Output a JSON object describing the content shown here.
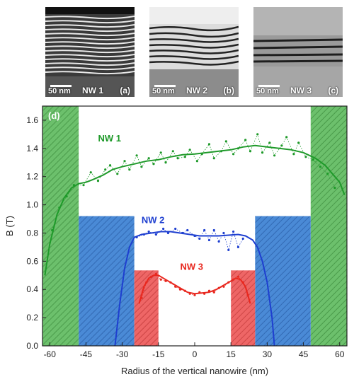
{
  "panels": [
    {
      "id": "a",
      "scale": "50 nm",
      "name": "NW 1",
      "label": "(a)"
    },
    {
      "id": "b",
      "scale": "50 nm",
      "name": "NW 2",
      "label": "(b)"
    },
    {
      "id": "c",
      "scale": "50 nm",
      "name": "NW 3",
      "label": "(c)"
    }
  ],
  "chart_data": {
    "type": "line",
    "panel_label": "(d)",
    "xlabel": "Radius of the vertical nanowire (nm)",
    "ylabel": "B (T)",
    "xlim": [
      -63,
      63
    ],
    "ylim": [
      0,
      1.7
    ],
    "xticks": [
      -60,
      -45,
      -30,
      -15,
      0,
      15,
      30,
      45,
      60
    ],
    "yticks": [
      0.0,
      0.2,
      0.4,
      0.6,
      0.8,
      1.0,
      1.2,
      1.4,
      1.6
    ],
    "ytick_labels": [
      "0.0",
      "0.2",
      "0.4",
      "0.6",
      "0.8",
      "1.0",
      "1.2",
      "1.4",
      "1.6"
    ],
    "grid": false,
    "shaded_regions": [
      {
        "color": "#5cb85c",
        "x": [
          -63,
          -48
        ],
        "y": [
          0,
          1.7
        ]
      },
      {
        "color": "#5cb85c",
        "x": [
          48,
          63
        ],
        "y": [
          0,
          1.7
        ]
      },
      {
        "color": "#3b7fd1",
        "x": [
          -48,
          -25
        ],
        "y": [
          0,
          0.92
        ]
      },
      {
        "color": "#3b7fd1",
        "x": [
          25,
          48
        ],
        "y": [
          0,
          0.92
        ]
      },
      {
        "color": "#e84a4a",
        "x": [
          -25,
          -15
        ],
        "y": [
          0,
          0.535
        ]
      },
      {
        "color": "#e84a4a",
        "x": [
          15,
          25
        ],
        "y": [
          0,
          0.535
        ]
      }
    ],
    "series": [
      {
        "name": "NW 1",
        "color": "#1f9a2a",
        "fit_x": [
          -62,
          -60,
          -57,
          -54,
          -51,
          -48,
          -45,
          -42,
          -38,
          -34,
          -30,
          -25,
          -20,
          -15,
          -10,
          -5,
          0,
          5,
          10,
          15,
          20,
          25,
          30,
          35,
          40,
          45,
          50,
          54,
          57,
          60,
          62
        ],
        "fit_y": [
          0.5,
          0.72,
          0.93,
          1.05,
          1.12,
          1.15,
          1.16,
          1.18,
          1.21,
          1.25,
          1.27,
          1.29,
          1.31,
          1.32,
          1.34,
          1.355,
          1.36,
          1.37,
          1.38,
          1.39,
          1.41,
          1.42,
          1.41,
          1.4,
          1.39,
          1.37,
          1.33,
          1.28,
          1.22,
          1.16,
          1.07
        ],
        "raw_x": [
          -59,
          -56,
          -53,
          -50,
          -46,
          -43,
          -40,
          -37,
          -35,
          -32,
          -29,
          -27,
          -24,
          -22,
          -19,
          -17,
          -14,
          -12,
          -9,
          -7,
          -4,
          -2,
          1,
          3,
          6,
          8,
          11,
          13,
          16,
          18,
          21,
          23,
          26,
          28,
          31,
          33,
          36,
          38,
          41,
          43,
          46,
          49,
          52,
          55,
          58
        ],
        "raw_y": [
          0.82,
          0.98,
          1.06,
          1.14,
          1.14,
          1.23,
          1.17,
          1.25,
          1.28,
          1.22,
          1.31,
          1.25,
          1.35,
          1.27,
          1.33,
          1.29,
          1.37,
          1.3,
          1.38,
          1.33,
          1.34,
          1.39,
          1.31,
          1.36,
          1.43,
          1.33,
          1.38,
          1.45,
          1.36,
          1.4,
          1.46,
          1.38,
          1.5,
          1.37,
          1.44,
          1.35,
          1.42,
          1.48,
          1.36,
          1.44,
          1.34,
          1.32,
          1.27,
          1.22,
          1.12
        ],
        "label": {
          "x": -40,
          "y": 1.45
        }
      },
      {
        "name": "NW 2",
        "color": "#1e3fd0",
        "fit_x": [
          -33,
          -31,
          -29,
          -27,
          -25,
          -22,
          -18,
          -14,
          -10,
          -6,
          -2,
          2,
          6,
          10,
          14,
          18,
          21,
          24,
          26,
          28,
          30,
          32,
          33
        ],
        "fit_y": [
          0.0,
          0.3,
          0.55,
          0.7,
          0.77,
          0.79,
          0.8,
          0.81,
          0.81,
          0.8,
          0.79,
          0.78,
          0.78,
          0.78,
          0.785,
          0.79,
          0.78,
          0.75,
          0.7,
          0.6,
          0.45,
          0.2,
          0.0
        ],
        "raw_x": [
          -24,
          -21,
          -19,
          -16,
          -13,
          -11,
          -8,
          -5,
          -3,
          0,
          2,
          4,
          6,
          8,
          10,
          12,
          14,
          16,
          18,
          20
        ],
        "raw_y": [
          0.77,
          0.79,
          0.81,
          0.79,
          0.83,
          0.8,
          0.83,
          0.8,
          0.82,
          0.78,
          0.76,
          0.82,
          0.75,
          0.82,
          0.74,
          0.8,
          0.68,
          0.81,
          0.7,
          0.76
        ],
        "label": {
          "x": -22,
          "y": 0.87
        }
      },
      {
        "name": "NW 3",
        "color": "#e8281f",
        "fit_x": [
          -23,
          -21,
          -19,
          -17,
          -15,
          -12,
          -9,
          -6,
          -3,
          0,
          3,
          6,
          9,
          12,
          15,
          17,
          19,
          21,
          23
        ],
        "fit_y": [
          0.3,
          0.42,
          0.48,
          0.5,
          0.5,
          0.47,
          0.44,
          0.41,
          0.38,
          0.37,
          0.375,
          0.38,
          0.4,
          0.43,
          0.46,
          0.48,
          0.47,
          0.42,
          0.3
        ],
        "raw_x": [
          -22,
          -20,
          -18,
          -16,
          -14,
          -12,
          -10,
          -8,
          -6,
          -4,
          -2,
          0,
          2,
          4,
          6,
          8,
          10,
          12,
          14,
          16,
          18,
          20,
          22
        ],
        "raw_y": [
          0.34,
          0.45,
          0.49,
          0.51,
          0.47,
          0.46,
          0.45,
          0.42,
          0.4,
          0.39,
          0.37,
          0.36,
          0.38,
          0.37,
          0.39,
          0.38,
          0.41,
          0.42,
          0.45,
          0.47,
          0.49,
          0.45,
          0.36
        ],
        "label": {
          "x": -6,
          "y": 0.54
        }
      }
    ]
  }
}
